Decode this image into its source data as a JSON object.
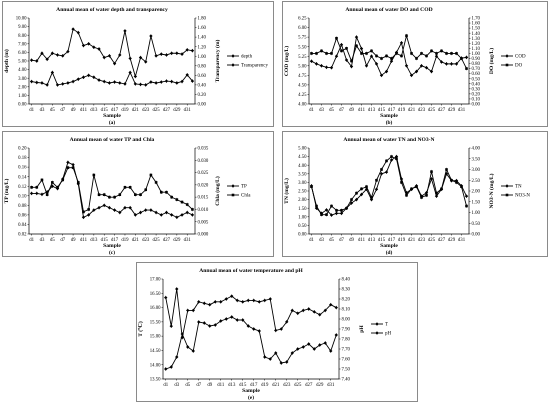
{
  "chart_data": [
    {
      "id": "a",
      "type": "line",
      "panel_label": "(a)",
      "title": "Annual mean of water depth and transparency",
      "xlabel": "Sample",
      "x": [
        "d1",
        "d2",
        "d3",
        "d4",
        "d5",
        "d6",
        "d7",
        "d8",
        "d9",
        "d10",
        "d11",
        "d12",
        "d13",
        "d14",
        "d15",
        "d16",
        "d17",
        "d18",
        "d19",
        "d20",
        "d21",
        "d22",
        "d23",
        "d24",
        "d25",
        "d26",
        "d27",
        "d28",
        "d29",
        "d30",
        "d31",
        "d32"
      ],
      "xtick_labels": [
        "d1",
        "d3",
        "d5",
        "d7",
        "d9",
        "d11",
        "d13",
        "d15",
        "d17",
        "d19",
        "d21",
        "d23",
        "d25",
        "d27",
        "d29",
        "d31"
      ],
      "y_left": {
        "label": "depth (m)",
        "ylim": [
          0,
          10
        ],
        "ticks": [
          "0.00",
          "1.00",
          "2.00",
          "3.00",
          "4.00",
          "5.00",
          "6.00",
          "7.00",
          "8.00",
          "9.00",
          "10.00"
        ]
      },
      "y_right": {
        "label": "Transparency (m)",
        "ylim": [
          0,
          1.8
        ],
        "ticks": [
          "0.00",
          "0.20",
          "0.40",
          "0.60",
          "0.80",
          "1.00",
          "1.20",
          "1.40",
          "1.60",
          "1.80"
        ]
      },
      "legend_position": "right",
      "series": [
        {
          "name": "depth",
          "axis": "left",
          "marker": "diamond",
          "values": [
            5.1,
            5.0,
            5.9,
            5.2,
            5.9,
            5.7,
            5.6,
            6.1,
            8.7,
            8.3,
            6.8,
            7.0,
            6.6,
            6.4,
            5.4,
            5.6,
            4.7,
            5.7,
            8.5,
            5.3,
            3.2,
            5.4,
            4.9,
            7.9,
            5.6,
            5.8,
            5.7,
            5.9,
            5.9,
            5.8,
            6.3,
            6.2
          ]
        },
        {
          "name": "Transparency",
          "axis": "right",
          "marker": "diamond",
          "values": [
            0.47,
            0.45,
            0.44,
            0.4,
            0.66,
            0.4,
            0.42,
            0.44,
            0.47,
            0.52,
            0.56,
            0.6,
            0.56,
            0.5,
            0.47,
            0.44,
            0.46,
            0.44,
            0.42,
            0.66,
            0.42,
            0.41,
            0.4,
            0.46,
            0.44,
            0.46,
            0.48,
            0.47,
            0.44,
            0.47,
            0.61,
            0.48
          ]
        }
      ]
    },
    {
      "id": "b",
      "type": "line",
      "panel_label": "(b)",
      "title": "Annual mean of water DO and COD",
      "xlabel": "Sample",
      "x": [
        "d1",
        "d2",
        "d3",
        "d4",
        "d5",
        "d6",
        "d7",
        "d8",
        "d9",
        "d10",
        "d11",
        "d12",
        "d13",
        "d14",
        "d15",
        "d16",
        "d17",
        "d18",
        "d19",
        "d20",
        "d21",
        "d22",
        "d23",
        "d24",
        "d25",
        "d26",
        "d27",
        "d28",
        "d29",
        "d30",
        "d31",
        "d32"
      ],
      "xtick_labels": [
        "d1",
        "d3",
        "d5",
        "d7",
        "d9",
        "d11",
        "d13",
        "d15",
        "d17",
        "d19",
        "d21",
        "d23",
        "d25",
        "d27",
        "d29",
        "d31"
      ],
      "y_left": {
        "label": "COD (mg/L)",
        "ylim": [
          4.0,
          6.25
        ],
        "ticks": [
          "4.00",
          "4.25",
          "4.50",
          "4.75",
          "5.00",
          "5.25",
          "5.50",
          "5.75",
          "6.00",
          "6.25"
        ]
      },
      "y_right": {
        "label": "DO (mg/L)",
        "ylim": [
          0,
          1.7
        ],
        "ticks": [
          "0.00",
          "0.10",
          "0.20",
          "0.30",
          "0.40",
          "0.50",
          "0.60",
          "0.70",
          "0.80",
          "0.90",
          "1.00",
          "1.10",
          "1.20",
          "1.30",
          "1.40",
          "1.50",
          "1.60",
          "1.70"
        ]
      },
      "legend_position": "right",
      "series": [
        {
          "name": "COD",
          "axis": "left",
          "marker": "diamond",
          "values": [
            5.12,
            5.05,
            5.0,
            4.96,
            4.95,
            5.25,
            5.55,
            5.15,
            4.98,
            5.75,
            5.45,
            5.0,
            5.25,
            5.05,
            4.75,
            4.85,
            5.12,
            5.35,
            5.6,
            5.0,
            4.75,
            4.85,
            5.0,
            4.95,
            4.85,
            5.25,
            5.1,
            5.05,
            5.05,
            5.05,
            5.2,
            5.22
          ]
        },
        {
          "name": "DO",
          "axis": "right",
          "marker": "square",
          "values": [
            1.0,
            1.0,
            1.05,
            1.0,
            1.0,
            1.3,
            1.05,
            1.1,
            0.85,
            1.15,
            1.0,
            1.0,
            1.05,
            0.95,
            0.9,
            0.95,
            0.9,
            1.0,
            0.95,
            1.35,
            1.0,
            0.9,
            1.0,
            0.95,
            1.05,
            1.0,
            1.05,
            1.0,
            1.0,
            1.0,
            0.9,
            0.7
          ]
        }
      ]
    },
    {
      "id": "c",
      "type": "line",
      "panel_label": "(c)",
      "title": "Annual mean of water TP and Chla",
      "xlabel": "Sample",
      "x": [
        "d1",
        "d2",
        "d3",
        "d4",
        "d5",
        "d6",
        "d7",
        "d8",
        "d9",
        "d10",
        "d11",
        "d12",
        "d13",
        "d14",
        "d15",
        "d16",
        "d17",
        "d18",
        "d19",
        "d20",
        "d21",
        "d22",
        "d23",
        "d24",
        "d25",
        "d26",
        "d27",
        "d28",
        "d29",
        "d30",
        "d31",
        "d32"
      ],
      "xtick_labels": [
        "d1",
        "d3",
        "d5",
        "d7",
        "d9",
        "d11",
        "d13",
        "d15",
        "d17",
        "d19",
        "d21",
        "d23",
        "d25",
        "d27",
        "d29",
        "d31"
      ],
      "y_left": {
        "label": "TP (mg/L)",
        "ylim": [
          0.02,
          0.2
        ],
        "ticks": [
          "0.02",
          "0.04",
          "0.06",
          "0.08",
          "0.10",
          "0.12",
          "0.14",
          "0.16",
          "0.18",
          "0.20"
        ]
      },
      "y_right": {
        "label": "Chla (mg/L)",
        "ylim": [
          0,
          0.035
        ],
        "ticks": [
          "0.000",
          "0.005",
          "0.010",
          "0.015",
          "0.020",
          "0.025",
          "0.030",
          "0.035"
        ]
      },
      "legend_position": "right",
      "series": [
        {
          "name": "TP",
          "axis": "left",
          "marker": "diamond",
          "values": [
            0.105,
            0.105,
            0.103,
            0.108,
            0.12,
            0.115,
            0.135,
            0.17,
            0.165,
            0.125,
            0.055,
            0.06,
            0.07,
            0.075,
            0.08,
            0.075,
            0.07,
            0.065,
            0.075,
            0.075,
            0.06,
            0.065,
            0.07,
            0.07,
            0.065,
            0.06,
            0.065,
            0.06,
            0.055,
            0.06,
            0.065,
            0.06
          ]
        },
        {
          "name": "Chla",
          "axis": "right",
          "marker": "square",
          "values": [
            0.019,
            0.019,
            0.022,
            0.016,
            0.021,
            0.019,
            0.022,
            0.027,
            0.027,
            0.021,
            0.009,
            0.01,
            0.024,
            0.016,
            0.016,
            0.015,
            0.015,
            0.016,
            0.019,
            0.019,
            0.016,
            0.016,
            0.018,
            0.024,
            0.021,
            0.017,
            0.017,
            0.015,
            0.014,
            0.013,
            0.012,
            0.01
          ]
        }
      ]
    },
    {
      "id": "d",
      "type": "line",
      "panel_label": "(d)",
      "title": "Annual mean of water TN and NO3-N",
      "xlabel": "Sample",
      "x": [
        "d1",
        "d2",
        "d3",
        "d4",
        "d5",
        "d6",
        "d7",
        "d8",
        "d9",
        "d10",
        "d11",
        "d12",
        "d13",
        "d14",
        "d15",
        "d16",
        "d17",
        "d18",
        "d19",
        "d20",
        "d21",
        "d22",
        "d23",
        "d24",
        "d25",
        "d26",
        "d27",
        "d28",
        "d29",
        "d30",
        "d31",
        "d32"
      ],
      "xtick_labels": [
        "d1",
        "d3",
        "d5",
        "d7",
        "d9",
        "d11",
        "d13",
        "d15",
        "d17",
        "d19",
        "d21",
        "d23",
        "d25",
        "d27",
        "d29",
        "d31"
      ],
      "y_left": {
        "label": "TN (mg/L)",
        "ylim": [
          0.0,
          5.0
        ],
        "ticks": [
          "0.00",
          "0.50",
          "1.00",
          "1.50",
          "2.00",
          "2.50",
          "3.00",
          "3.50",
          "4.00",
          "4.50",
          "5.00"
        ]
      },
      "y_right": {
        "label": "NO3-N (mg/L)",
        "ylim": [
          0.0,
          4.0
        ],
        "ticks": [
          "0.00",
          "0.50",
          "1.00",
          "1.50",
          "2.00",
          "2.50",
          "3.00",
          "3.50",
          "4.00"
        ]
      },
      "legend_position": "right",
      "series": [
        {
          "name": "TN",
          "axis": "left",
          "marker": "diamond",
          "values": [
            2.8,
            1.5,
            1.2,
            1.4,
            1.1,
            1.2,
            1.2,
            1.5,
            1.8,
            2.0,
            2.3,
            2.6,
            2.0,
            2.6,
            3.5,
            3.6,
            4.3,
            4.5,
            3.2,
            2.4,
            2.6,
            2.8,
            2.2,
            2.4,
            3.2,
            2.2,
            2.6,
            3.5,
            3.1,
            3.1,
            2.8,
            2.2
          ]
        },
        {
          "name": "NO3-N",
          "axis": "right",
          "marker": "square",
          "values": [
            2.2,
            1.3,
            0.9,
            0.9,
            1.3,
            1.1,
            1.1,
            1.2,
            1.6,
            1.9,
            2.1,
            2.2,
            1.7,
            2.5,
            3.0,
            3.4,
            3.6,
            3.5,
            2.4,
            1.8,
            2.1,
            2.2,
            1.7,
            1.8,
            2.9,
            1.9,
            2.1,
            3.0,
            2.5,
            2.4,
            2.2,
            1.3
          ]
        }
      ]
    },
    {
      "id": "e",
      "type": "line",
      "panel_label": "(e)",
      "title": "Annual mean of water temperature and pH",
      "xlabel": "Sample",
      "x": [
        "d1",
        "d2",
        "d3",
        "d4",
        "d5",
        "d6",
        "d7",
        "d8",
        "d9",
        "d10",
        "d11",
        "d12",
        "d13",
        "d14",
        "d15",
        "d16",
        "d17",
        "d18",
        "d19",
        "d20",
        "d21",
        "d22",
        "d23",
        "d24",
        "d25",
        "d26",
        "d27",
        "d28",
        "d29",
        "d30",
        "d31",
        "d32"
      ],
      "xtick_labels": [
        "d1",
        "d3",
        "d5",
        "d7",
        "d9",
        "d11",
        "d13",
        "d15",
        "d17",
        "d19",
        "d21",
        "d23",
        "d25",
        "d27",
        "d29",
        "d31"
      ],
      "y_left": {
        "label": "T (℃)",
        "ylim": [
          13.5,
          17.0
        ],
        "ticks": [
          "13.50",
          "14.00",
          "14.50",
          "15.00",
          "15.50",
          "16.00",
          "16.50",
          "17.00"
        ]
      },
      "y_right": {
        "label": "pH",
        "ylim": [
          7.4,
          8.4
        ],
        "ticks": [
          "7.40",
          "7.50",
          "7.60",
          "7.70",
          "7.80",
          "7.90",
          "8.00",
          "8.10",
          "8.20",
          "8.30",
          "8.40"
        ]
      },
      "legend_position": "right",
      "series": [
        {
          "name": "T",
          "axis": "left",
          "marker": "diamond",
          "values": [
            16.35,
            15.35,
            16.65,
            14.95,
            15.9,
            15.9,
            16.2,
            16.15,
            16.1,
            16.2,
            16.2,
            16.3,
            16.4,
            16.25,
            16.2,
            16.25,
            16.25,
            16.2,
            16.25,
            16.3,
            15.2,
            15.25,
            15.5,
            15.9,
            15.8,
            15.9,
            15.95,
            15.85,
            15.75,
            15.9,
            16.1,
            16.0
          ]
        },
        {
          "name": "pH",
          "axis": "right",
          "marker": "diamond",
          "values": [
            7.5,
            7.52,
            7.62,
            7.85,
            7.72,
            7.68,
            7.97,
            7.96,
            7.93,
            7.94,
            7.98,
            8.0,
            8.02,
            7.99,
            7.99,
            7.93,
            7.9,
            7.88,
            7.62,
            7.6,
            7.66,
            7.56,
            7.57,
            7.66,
            7.7,
            7.72,
            7.75,
            7.7,
            7.74,
            7.76,
            7.68,
            7.84
          ]
        }
      ]
    }
  ]
}
